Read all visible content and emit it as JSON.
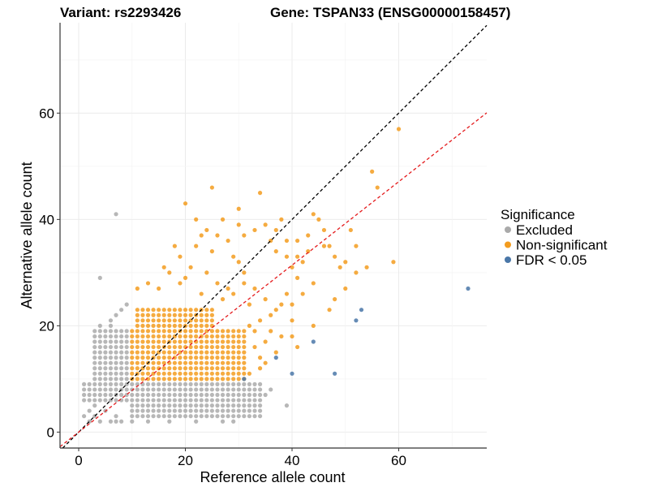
{
  "chart_data": {
    "type": "scatter",
    "title_left": "Variant: rs2293426",
    "title_right": "Gene: TSPAN33 (ENSG00000158457)",
    "xlabel": "Reference allele count",
    "ylabel": "Alternative allele count",
    "xlim": [
      -3.5,
      76.5
    ],
    "ylim": [
      -3,
      77
    ],
    "xticks": [
      0,
      20,
      40,
      60
    ],
    "yticks": [
      0,
      20,
      40,
      60
    ],
    "grid": true,
    "reference_lines": [
      {
        "name": "identity",
        "slope": 1.0,
        "intercept": 0,
        "color": "#000000",
        "style": "dashed"
      },
      {
        "name": "expected-ratio",
        "slope": 0.785,
        "intercept": 0,
        "color": "#e41a1c",
        "style": "dashed"
      }
    ],
    "legend": {
      "title": "Significance",
      "position": "right",
      "entries": [
        {
          "label": "Excluded",
          "color": "#aaaaaa"
        },
        {
          "label": "Non-significant",
          "color": "#f39c1f"
        },
        {
          "label": "FDR < 0.05",
          "color": "#4a77a8"
        }
      ]
    },
    "series": [
      {
        "name": "Excluded",
        "color": "#aaaaaa",
        "grid_fill": [
          {
            "x": [
              1,
              9
            ],
            "y": [
              6,
              9
            ]
          },
          {
            "x": [
              3,
              9
            ],
            "y": [
              10,
              19
            ]
          },
          {
            "x": [
              10,
              34
            ],
            "y": [
              3,
              9
            ]
          }
        ],
        "points": [
          [
            2,
            2
          ],
          [
            1,
            3
          ],
          [
            2,
            4
          ],
          [
            3,
            3
          ],
          [
            3,
            5
          ],
          [
            5,
            4
          ],
          [
            4,
            2
          ],
          [
            6,
            2
          ],
          [
            7,
            2
          ],
          [
            7,
            3
          ],
          [
            8,
            2
          ],
          [
            7,
            41
          ],
          [
            4,
            29
          ],
          [
            5,
            17
          ],
          [
            4,
            20
          ],
          [
            6,
            20
          ],
          [
            6,
            21
          ],
          [
            7,
            22
          ],
          [
            8,
            23
          ],
          [
            9,
            24
          ],
          [
            5,
            15
          ],
          [
            4,
            16
          ],
          [
            8,
            19
          ],
          [
            9,
            16
          ],
          [
            10,
            2
          ],
          [
            11,
            3
          ],
          [
            13,
            2
          ],
          [
            15,
            3
          ],
          [
            17,
            2
          ],
          [
            19,
            3
          ],
          [
            22,
            2
          ],
          [
            23,
            3
          ],
          [
            27,
            2
          ],
          [
            29,
            2
          ],
          [
            30,
            3
          ],
          [
            31,
            4
          ],
          [
            33,
            5
          ],
          [
            34,
            6
          ],
          [
            35,
            7
          ],
          [
            39,
            5
          ],
          [
            36,
            8
          ]
        ]
      },
      {
        "name": "Non-significant",
        "color": "#f39c1f",
        "grid_fill": [
          {
            "x": [
              10,
              31
            ],
            "y": [
              10,
              19
            ]
          },
          {
            "x": [
              11,
              25
            ],
            "y": [
              20,
              23
            ]
          }
        ],
        "points": [
          [
            25,
            46
          ],
          [
            20,
            43
          ],
          [
            27,
            40
          ],
          [
            30,
            42
          ],
          [
            31,
            37
          ],
          [
            30,
            39
          ],
          [
            28,
            36
          ],
          [
            26,
            37
          ],
          [
            25,
            34
          ],
          [
            24,
            38
          ],
          [
            22,
            40
          ],
          [
            29,
            33
          ],
          [
            33,
            38
          ],
          [
            34,
            45
          ],
          [
            35,
            39
          ],
          [
            37,
            38
          ],
          [
            38,
            40
          ],
          [
            39,
            33
          ],
          [
            40,
            31
          ],
          [
            41,
            29
          ],
          [
            42,
            32
          ],
          [
            43,
            34
          ],
          [
            44,
            41
          ],
          [
            45,
            40
          ],
          [
            46,
            38
          ],
          [
            47,
            35
          ],
          [
            48,
            33
          ],
          [
            49,
            31
          ],
          [
            50,
            32
          ],
          [
            51,
            38
          ],
          [
            52,
            35
          ],
          [
            47,
            23
          ],
          [
            48,
            25
          ],
          [
            50,
            27
          ],
          [
            52,
            30
          ],
          [
            54,
            31
          ],
          [
            55,
            49
          ],
          [
            56,
            46
          ],
          [
            59,
            32
          ],
          [
            60,
            57
          ],
          [
            44,
            20
          ],
          [
            32,
            20
          ],
          [
            34,
            21
          ],
          [
            36,
            22
          ],
          [
            38,
            24
          ],
          [
            40,
            21
          ],
          [
            42,
            26
          ],
          [
            31,
            28
          ],
          [
            33,
            27
          ],
          [
            35,
            25
          ],
          [
            37,
            23
          ],
          [
            39,
            26
          ],
          [
            31,
            30
          ],
          [
            26,
            28
          ],
          [
            28,
            27
          ],
          [
            24,
            30
          ],
          [
            23,
            26
          ],
          [
            17,
            30
          ],
          [
            19,
            28
          ],
          [
            21,
            31
          ],
          [
            13,
            28
          ],
          [
            15,
            27
          ],
          [
            11,
            27
          ],
          [
            18,
            35
          ],
          [
            19,
            33
          ],
          [
            16,
            31
          ],
          [
            20,
            29
          ],
          [
            22,
            35
          ],
          [
            23,
            37
          ],
          [
            30,
            32
          ],
          [
            29,
            26
          ],
          [
            27,
            25
          ],
          [
            32,
            24
          ],
          [
            36,
            36
          ],
          [
            41,
            36
          ],
          [
            43,
            37
          ],
          [
            46,
            35
          ],
          [
            44,
            28
          ],
          [
            40,
            24
          ],
          [
            41,
            33
          ],
          [
            39,
            36
          ],
          [
            37,
            34
          ],
          [
            32,
            11
          ],
          [
            33,
            16
          ],
          [
            34,
            14
          ],
          [
            35,
            17
          ],
          [
            36,
            19
          ],
          [
            37,
            15
          ],
          [
            38,
            18
          ],
          [
            35,
            13
          ],
          [
            40,
            18
          ],
          [
            41,
            16
          ],
          [
            34,
            12
          ],
          [
            33,
            19
          ]
        ]
      },
      {
        "name": "FDR < 0.05",
        "color": "#4a77a8",
        "points": [
          [
            73,
            27
          ],
          [
            53,
            23
          ],
          [
            52,
            21
          ],
          [
            44,
            17
          ],
          [
            40,
            11
          ],
          [
            48,
            11
          ],
          [
            37,
            14
          ],
          [
            31,
            10
          ]
        ]
      }
    ]
  }
}
